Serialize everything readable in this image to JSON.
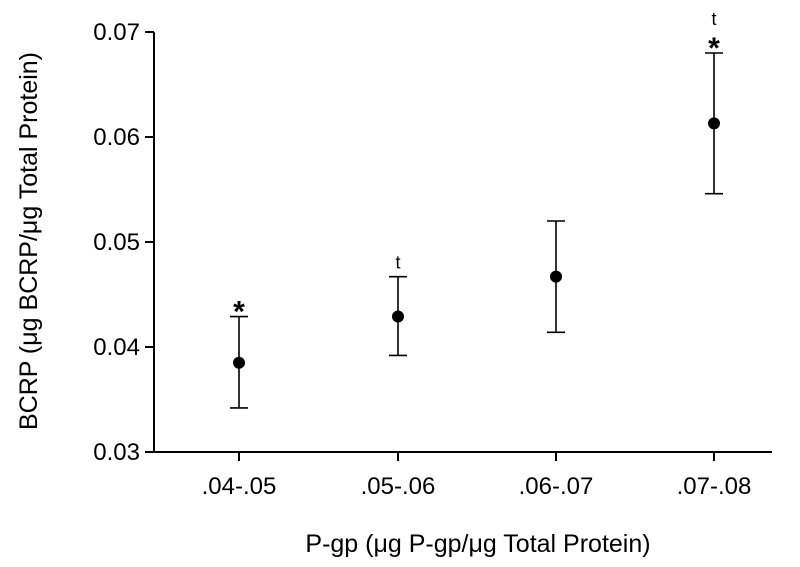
{
  "chart_data": {
    "type": "scatter",
    "title": "",
    "xlabel": "P-gp (μg P-gp/μg Total Protein)",
    "ylabel": "BCRP (μg BCRP/μg Total Protein)",
    "categories": [
      ".04-.05",
      ".05-.06",
      ".06-.07",
      ".07-.08"
    ],
    "values": [
      0.0385,
      0.0429,
      0.0467,
      0.0613
    ],
    "error_low": [
      0.0342,
      0.0392,
      0.0414,
      0.0546
    ],
    "error_high": [
      0.0429,
      0.0467,
      0.052,
      0.068
    ],
    "annotations": [
      [
        "*"
      ],
      [
        "t"
      ],
      [],
      [
        "t",
        "*"
      ]
    ],
    "ylim": [
      0.03,
      0.07
    ],
    "yticks": [
      0.03,
      0.04,
      0.05,
      0.06,
      0.07
    ],
    "ytick_labels": [
      "0.03",
      "0.04",
      "0.05",
      "0.06",
      "0.07"
    ],
    "grid": false,
    "marker_color": "#000000"
  }
}
